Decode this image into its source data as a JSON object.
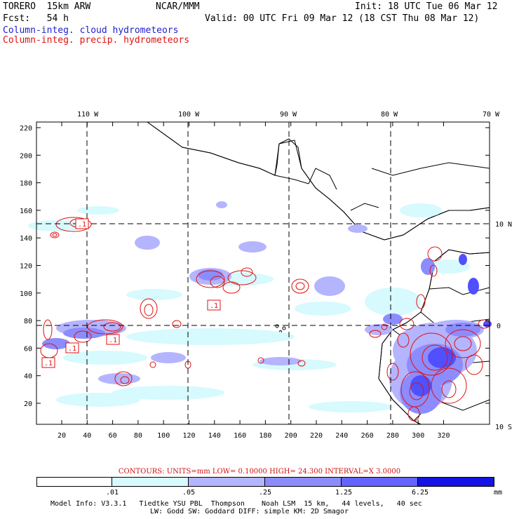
{
  "header": {
    "model": "TORERO  15km ARW",
    "org": "NCAR/MMM",
    "init": "Init: 18 UTC Tue 06 Mar 12",
    "fcst": "Fcst:   54 h",
    "valid": "Valid: 00 UTC Fri 09 Mar 12 (18 CST Thu 08 Mar 12)",
    "field1": "Column-integ. cloud hydrometeors",
    "field2": "Column-integ. precip. hydrometeors"
  },
  "map": {
    "lon_labels": [
      "110 W",
      "100 W",
      "90 W",
      "80 W",
      "70 W"
    ],
    "lat_labels": [
      "10 N",
      "0",
      "10 S"
    ],
    "y_ticks": [
      "220",
      "200",
      "180",
      "160",
      "140",
      "120",
      "100",
      "80",
      "60",
      "40",
      "20"
    ],
    "x_ticks": [
      "20",
      "40",
      "60",
      "80",
      "100",
      "120",
      "140",
      "160",
      "180",
      "200",
      "220",
      "240",
      "260",
      "280",
      "300",
      "320"
    ],
    "contour_labels": [
      ".1",
      ".1",
      ".1",
      ".1",
      ".1"
    ]
  },
  "contour_info": "CONTOURS:  UNITS=mm  LOW= 0.10000      HIGH=  24.300      INTERVAL=X  3.0000",
  "colorbar": {
    "labels": [
      ".01",
      ".05",
      ".25",
      "1.25",
      "6.25"
    ],
    "units": "mm",
    "colors": [
      "#ffffff",
      "#d6fafe",
      "#b4b4ff",
      "#8c8cff",
      "#6464ff",
      "#3232ff",
      "#1414e6"
    ]
  },
  "footer": {
    "line1": "Model Info: V3.3.1   Tiedtke YSU PBL  Thompson    Noah LSM  15 km,   44 levels,   40 sec",
    "line2": "LW: Godd SW: Goddard DIFF: simple KM: 2D Smagor"
  }
}
